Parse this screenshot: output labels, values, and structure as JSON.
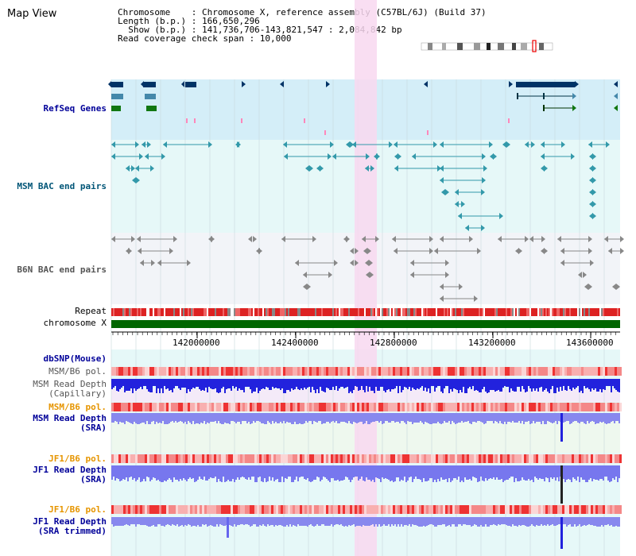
{
  "view_title": "Map View",
  "info": {
    "chromosome_line": "Chromosome    : Chromosome X, reference assembly (C57BL/6J) (Build 37)",
    "length_line": "Length (b.p.) : 166,650,296",
    "show_line": "  Show (b.p.) : 141,736,706-143,821,547 : 2,084,842 bp",
    "coverage_line": "Read coverage check span : 10,000"
  },
  "tracks": {
    "refseq": "RefSeq Genes",
    "msm_bac": "MSM BAC end pairs",
    "b6n_bac": "B6N BAC end pairs",
    "repeat": "Repeat",
    "chromosome": "chromosome X",
    "dbsnp": "dbSNP(Mouse)",
    "msm_pol_1": "MSM/B6 pol.",
    "msm_depth_cap": "MSM Read Depth\n(Capillary)",
    "msm_pol_2": "MSM/B6 pol.",
    "msm_depth_sra": "MSM Read Depth\n(SRA)",
    "jf1_pol_1": "JF1/B6 pol.",
    "jf1_depth_sra": "JF1 Read Depth\n(SRA)",
    "jf1_pol_2": "JF1/B6 pol.",
    "jf1_depth_trim": "JF1 Read Depth\n(SRA trimmed)"
  },
  "axis": {
    "ticks": [
      "142000000",
      "142400000",
      "142800000",
      "143200000",
      "143600000"
    ]
  },
  "colors": {
    "refseq_bg": "#d4eef8",
    "bac_bg": "#e6f8f8",
    "b6n_bg": "#f2f4f8",
    "highlight": "#f8d8f0",
    "chromosome_bar": "#006600",
    "depth_dark": "#2222dd",
    "depth_light": "#8888ee"
  }
}
